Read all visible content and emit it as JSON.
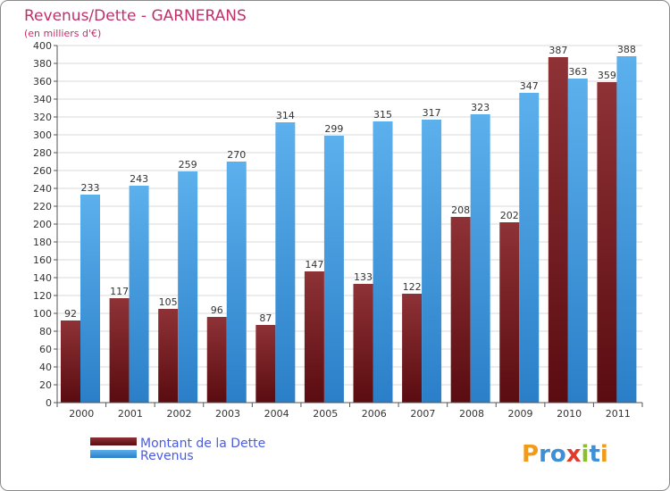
{
  "colors": {
    "title": "#c1306b",
    "dette_light": "#8e3236",
    "dette_dark": "#5a0c10",
    "revenus_light": "#5cb0ec",
    "revenus_dark": "#2a7fc8",
    "grid": "#d8d8d8",
    "legend_text": "#4a5be0"
  },
  "logo": {
    "letters": [
      "P",
      "r",
      "o",
      "x",
      "i",
      "t",
      "i"
    ],
    "colors": [
      "#f29a1a",
      "#3f8fd6",
      "#3f8fd6",
      "#e23b2c",
      "#8cbf2e",
      "#3f8fd6",
      "#f29a1a"
    ]
  },
  "chart_data": {
    "type": "bar",
    "title": "Revenus/Dette - GARNERANS",
    "subtitle": "(en milliers d'€)",
    "categories": [
      "2000",
      "2001",
      "2002",
      "2003",
      "2004",
      "2005",
      "2006",
      "2007",
      "2008",
      "2009",
      "2010",
      "2011"
    ],
    "series": [
      {
        "name": "Montant de la Dette",
        "values": [
          92,
          117,
          105,
          96,
          87,
          147,
          133,
          122,
          208,
          202,
          387,
          359
        ]
      },
      {
        "name": "Revenus",
        "values": [
          233,
          243,
          259,
          270,
          314,
          299,
          315,
          317,
          323,
          347,
          363,
          388
        ]
      }
    ],
    "ylim": [
      0,
      400
    ],
    "ytick_step": 20,
    "grid": true,
    "legend": "bottom-left"
  }
}
